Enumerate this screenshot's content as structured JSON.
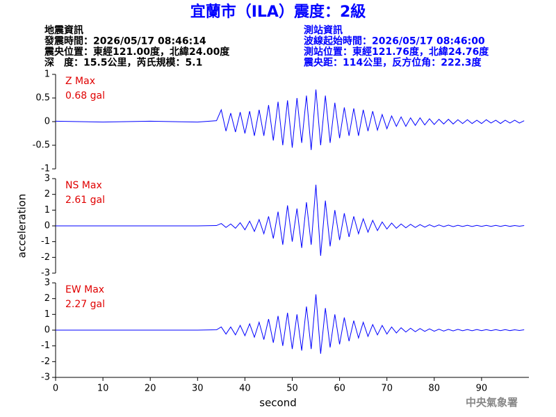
{
  "chart_data": {
    "type": "line",
    "title": "宜蘭市（ILA）震度：2級",
    "info_left": [
      "地震資訊",
      "發震時間：2026/05/17 08:46:14",
      "震央位置：東經121.00度，北緯24.00度",
      "深　度：15.5公里，芮氏規模：5.1"
    ],
    "info_right": [
      "測站資訊",
      "波線起始時間：2026/05/17 08:46:00",
      "測站位置：東經121.76度，北緯24.76度",
      "震央距：114公里，反方位角：222.3度"
    ],
    "xlabel": "second",
    "ylabel": "acceleration",
    "credit": "中央氣象署",
    "xlim": [
      0,
      100
    ],
    "xticks": [
      0,
      10,
      20,
      30,
      40,
      50,
      60,
      70,
      80,
      90
    ],
    "x": [
      0,
      10,
      20,
      30,
      34,
      35,
      36,
      37,
      38,
      39,
      40,
      41,
      42,
      43,
      44,
      45,
      46,
      47,
      48,
      49,
      50,
      51,
      52,
      53,
      54,
      55,
      56,
      57,
      58,
      59,
      60,
      61,
      62,
      63,
      64,
      65,
      66,
      67,
      68,
      69,
      70,
      71,
      72,
      73,
      74,
      75,
      76,
      77,
      78,
      79,
      80,
      81,
      82,
      83,
      84,
      85,
      86,
      87,
      88,
      89,
      90,
      91,
      92,
      93,
      94,
      95,
      96,
      97,
      98,
      99
    ],
    "series": [
      {
        "name": "Z Max",
        "label": "0.68 gal",
        "color": "#0000ff",
        "ylim": [
          -1,
          1
        ],
        "yticks": [
          -1,
          -0.5,
          0,
          0.5,
          1
        ],
        "values": [
          0.01,
          -0.01,
          0.01,
          -0.01,
          0.02,
          0.25,
          -0.2,
          0.18,
          -0.22,
          0.2,
          -0.25,
          0.22,
          -0.3,
          0.25,
          -0.3,
          0.35,
          -0.4,
          0.42,
          -0.5,
          0.45,
          -0.55,
          0.5,
          -0.45,
          0.55,
          -0.6,
          0.68,
          -0.5,
          0.55,
          -0.45,
          0.4,
          -0.35,
          0.3,
          -0.3,
          0.28,
          -0.3,
          0.25,
          -0.2,
          0.22,
          -0.18,
          0.15,
          -0.15,
          0.12,
          -0.1,
          0.1,
          -0.1,
          0.08,
          -0.08,
          0.08,
          -0.07,
          0.06,
          -0.06,
          0.05,
          -0.05,
          0.05,
          -0.05,
          0.04,
          -0.04,
          0.04,
          -0.04,
          0.03,
          -0.04,
          0.04,
          -0.03,
          0.03,
          -0.04,
          0.03,
          -0.03,
          0.03,
          -0.03,
          0.02
        ]
      },
      {
        "name": "NS Max",
        "label": "2.61 gal",
        "color": "#0000ff",
        "ylim": [
          -3,
          3
        ],
        "yticks": [
          -3,
          -2,
          -1,
          0,
          1,
          2,
          3
        ],
        "values": [
          0,
          0,
          0,
          0,
          0.02,
          0.15,
          -0.1,
          0.12,
          -0.15,
          0.2,
          -0.25,
          0.3,
          -0.35,
          0.4,
          -0.5,
          0.6,
          -0.8,
          0.9,
          -1.2,
          1.3,
          -1.0,
          1.1,
          -1.4,
          1.5,
          -1.2,
          2.61,
          -1.9,
          1.6,
          -1.3,
          1.0,
          -0.9,
          0.8,
          -0.7,
          0.6,
          -0.5,
          0.45,
          -0.4,
          0.35,
          -0.3,
          0.25,
          -0.2,
          0.18,
          -0.15,
          0.12,
          -0.12,
          0.1,
          -0.1,
          0.08,
          -0.08,
          0.07,
          -0.06,
          0.06,
          -0.05,
          0.05,
          -0.05,
          0.04,
          -0.04,
          0.04,
          -0.04,
          0.03,
          -0.03,
          0.03,
          -0.03,
          0.03,
          -0.03,
          0.03,
          -0.03,
          0.02,
          -0.02,
          0.02
        ]
      },
      {
        "name": "EW Max",
        "label": "2.27 gal",
        "color": "#0000ff",
        "ylim": [
          -3,
          3
        ],
        "yticks": [
          -3,
          -2,
          -1,
          0,
          1,
          2,
          3
        ],
        "values": [
          0,
          0,
          0,
          0,
          0.02,
          0.2,
          -0.25,
          0.2,
          -0.3,
          0.3,
          -0.35,
          0.4,
          -0.45,
          0.5,
          -0.6,
          0.7,
          -0.8,
          0.9,
          -1.0,
          1.1,
          -1.2,
          1.0,
          -1.3,
          1.5,
          -1.2,
          2.27,
          -1.5,
          1.4,
          -1.1,
          1.0,
          -0.9,
          0.8,
          -0.7,
          0.6,
          -0.5,
          0.5,
          -0.4,
          0.35,
          -0.3,
          0.3,
          -0.25,
          0.2,
          -0.18,
          0.15,
          -0.12,
          0.12,
          -0.1,
          0.1,
          -0.08,
          0.08,
          -0.07,
          0.06,
          -0.06,
          0.05,
          -0.05,
          0.05,
          -0.04,
          0.04,
          -0.04,
          0.04,
          -0.03,
          0.03,
          -0.03,
          0.03,
          -0.03,
          0.03,
          -0.03,
          0.02,
          -0.02,
          0.02
        ]
      }
    ]
  }
}
